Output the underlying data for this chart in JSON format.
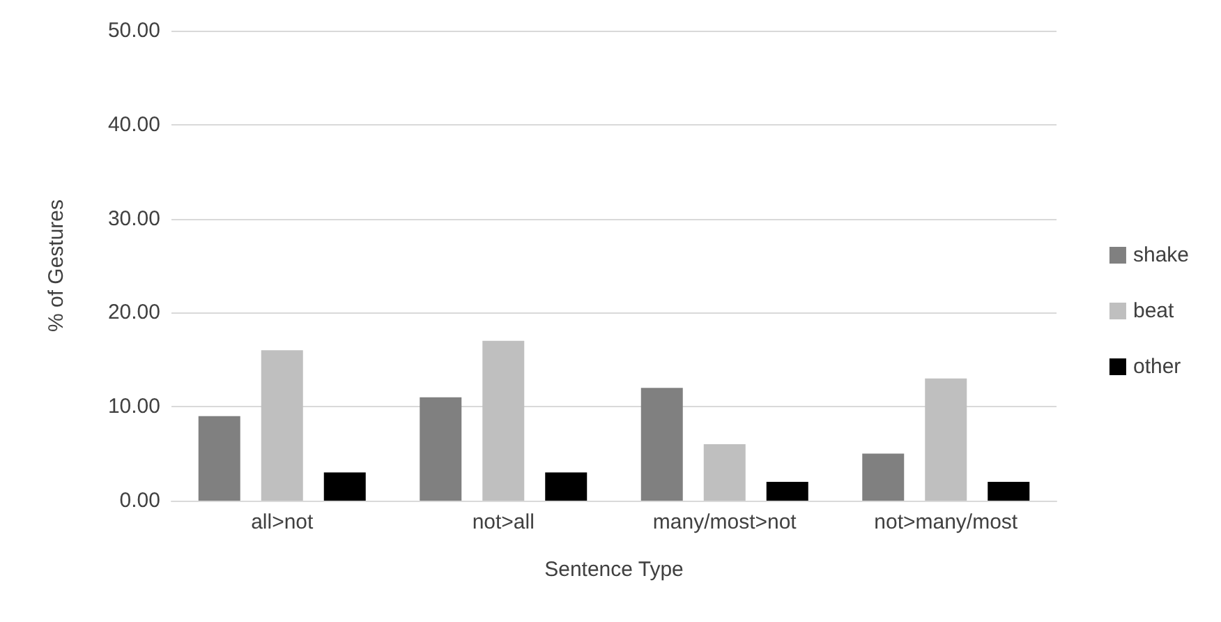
{
  "chart_data": {
    "type": "bar",
    "xlabel": "Sentence Type",
    "ylabel": "% of Gestures",
    "categories": [
      "all>not",
      "not>all",
      "many/most>not",
      "not>many/most"
    ],
    "series": [
      {
        "name": "shake",
        "color": "#808080",
        "values": [
          9,
          11,
          12,
          5
        ]
      },
      {
        "name": "beat",
        "color": "#bfbfbf",
        "values": [
          16,
          17,
          6,
          13
        ]
      },
      {
        "name": "other",
        "color": "#000000",
        "values": [
          3,
          3,
          2,
          2
        ]
      }
    ],
    "ylim": [
      0,
      50
    ],
    "yticks": [
      {
        "value": 0,
        "label": "0.00"
      },
      {
        "value": 10,
        "label": "10.00"
      },
      {
        "value": 20,
        "label": "20.00"
      },
      {
        "value": 30,
        "label": "30.00"
      },
      {
        "value": 40,
        "label": "40.00"
      },
      {
        "value": 50,
        "label": "50.00"
      }
    ],
    "grid": "y",
    "legend": "right"
  }
}
